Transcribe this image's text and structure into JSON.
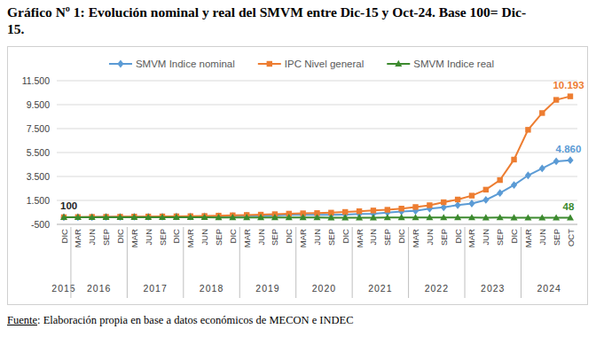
{
  "chart_data": {
    "type": "line",
    "title": "Gráfico Nº 1: Evolución nominal y real del SMVM entre Dic-15 y Oct-24. Base 100= Dic-15.",
    "source_label": "Fuente",
    "source": ": Elaboración propia en base a datos económicos de MECON e INDEC",
    "categories": [
      "DIC",
      "MAR",
      "JUN",
      "SEP",
      "DIC",
      "MAR",
      "JUN",
      "SEP",
      "DIC",
      "MAR",
      "JUN",
      "SEP",
      "DIC",
      "MAR",
      "JUN",
      "SEP",
      "DIC",
      "MAR",
      "JUN",
      "SEP",
      "DIC",
      "MAR",
      "JUN",
      "SEP",
      "DIC",
      "MAR",
      "JUN",
      "SEP",
      "DIC",
      "MAR",
      "JUN",
      "SEP",
      "DIC",
      "MAR",
      "JUN",
      "SEP",
      "OCT"
    ],
    "category_years": [
      2015,
      2016,
      2016,
      2016,
      2016,
      2017,
      2017,
      2017,
      2017,
      2018,
      2018,
      2018,
      2018,
      2019,
      2019,
      2019,
      2019,
      2020,
      2020,
      2020,
      2020,
      2021,
      2021,
      2021,
      2021,
      2022,
      2022,
      2022,
      2022,
      2023,
      2023,
      2023,
      2023,
      2024,
      2024,
      2024,
      2024
    ],
    "series": [
      {
        "name": "SMVM Indice nominal",
        "color": "#5b9bd5",
        "marker": "diamond",
        "values": [
          100,
          100,
          107,
          121,
          121,
          134,
          134,
          143,
          159,
          159,
          170,
          180,
          200,
          224,
          224,
          241,
          301,
          301,
          301,
          301,
          323,
          369,
          390,
          486,
          576,
          630,
          812,
          922,
          1107,
          1242,
          1540,
          2118,
          2794,
          3592,
          4170,
          4762,
          4860
        ],
        "value_labels": [
          "100",
          null,
          null,
          null,
          null,
          null,
          null,
          null,
          null,
          null,
          null,
          null,
          null,
          null,
          null,
          null,
          null,
          null,
          null,
          null,
          null,
          null,
          null,
          null,
          null,
          null,
          null,
          null,
          null,
          null,
          null,
          null,
          null,
          null,
          null,
          null,
          "4.860"
        ]
      },
      {
        "name": "IPC Nivel general",
        "color": "#ed7d31",
        "marker": "square",
        "values": [
          100,
          112,
          125,
          133,
          140,
          150,
          157,
          165,
          174,
          186,
          200,
          230,
          258,
          286,
          313,
          350,
          395,
          424,
          444,
          480,
          537,
          600,
          660,
          720,
          818,
          950,
          1100,
          1350,
          1577,
          1900,
          2400,
          3200,
          4912,
          7400,
          8800,
          9900,
          10193
        ],
        "value_labels": [
          null,
          null,
          null,
          null,
          null,
          null,
          null,
          null,
          null,
          null,
          null,
          null,
          null,
          null,
          null,
          null,
          null,
          null,
          null,
          null,
          null,
          null,
          null,
          null,
          null,
          null,
          null,
          null,
          null,
          null,
          null,
          null,
          null,
          null,
          null,
          null,
          "10.193"
        ]
      },
      {
        "name": "SMVM Indice real",
        "color": "#3c8a2e",
        "marker": "triangle",
        "values": [
          100,
          89,
          86,
          91,
          86,
          89,
          85,
          87,
          91,
          85,
          85,
          78,
          78,
          78,
          72,
          69,
          76,
          71,
          68,
          63,
          60,
          62,
          59,
          68,
          70,
          66,
          74,
          68,
          70,
          65,
          64,
          66,
          57,
          49,
          47,
          48,
          48
        ],
        "value_labels": [
          null,
          null,
          null,
          null,
          null,
          null,
          null,
          null,
          null,
          null,
          null,
          null,
          null,
          null,
          null,
          null,
          null,
          null,
          null,
          null,
          null,
          null,
          null,
          null,
          null,
          null,
          null,
          null,
          null,
          null,
          null,
          null,
          null,
          null,
          null,
          null,
          "48"
        ]
      }
    ],
    "ylim": [
      -500,
      11500
    ],
    "yticks": [
      {
        "value": -500,
        "label": "-500"
      },
      {
        "value": 1500,
        "label": "1.500"
      },
      {
        "value": 3500,
        "label": "3.500"
      },
      {
        "value": 5500,
        "label": "5.500"
      },
      {
        "value": 7500,
        "label": "7.500"
      },
      {
        "value": 9500,
        "label": "9.500"
      },
      {
        "value": 11500,
        "label": "11.500"
      }
    ],
    "grid": true,
    "legend": "top",
    "data_labels": true
  }
}
